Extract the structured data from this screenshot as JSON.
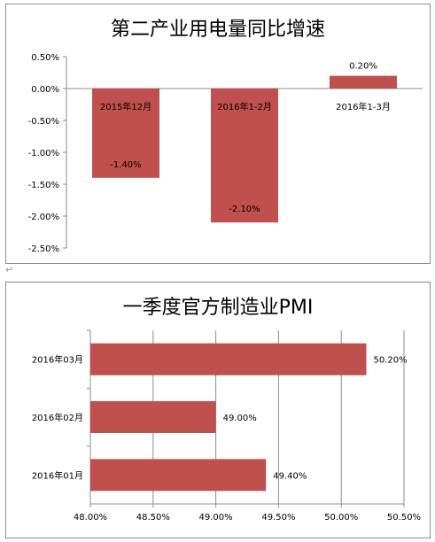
{
  "paragraph_mark": "↵",
  "chart_data": [
    {
      "type": "bar",
      "orientation": "vertical",
      "title": "第二产业用电量同比增速",
      "categories": [
        "2015年12月",
        "2016年1-2月",
        "2016年1-3月"
      ],
      "values": [
        -1.4,
        -2.1,
        0.2
      ],
      "value_labels": [
        "-1.40%",
        "-2.10%",
        "0.20%"
      ],
      "ylim": [
        -2.5,
        0.5
      ],
      "yticks": [
        0.5,
        0.0,
        -0.5,
        -1.0,
        -1.5,
        -2.0,
        -2.5
      ],
      "ytick_labels": [
        "0.50%",
        "0.00%",
        "-0.50%",
        "-1.00%",
        "-1.50%",
        "-2.00%",
        "-2.50%"
      ],
      "grid": false,
      "bar_color": "#c0504d",
      "legend": "none"
    },
    {
      "type": "bar",
      "orientation": "horizontal",
      "title": "一季度官方制造业PMI",
      "categories": [
        "2016年03月",
        "2016年02月",
        "2016年01月"
      ],
      "values": [
        50.2,
        49.0,
        49.4
      ],
      "value_labels": [
        "50.20%",
        "49.00%",
        "49.40%"
      ],
      "xlim": [
        48.0,
        50.5
      ],
      "xticks": [
        48.0,
        48.5,
        49.0,
        49.5,
        50.0,
        50.5
      ],
      "xtick_labels": [
        "48.00%",
        "48.50%",
        "49.00%",
        "49.50%",
        "50.00%",
        "50.50%"
      ],
      "grid": true,
      "bar_color": "#c0504d",
      "legend": "none"
    }
  ]
}
